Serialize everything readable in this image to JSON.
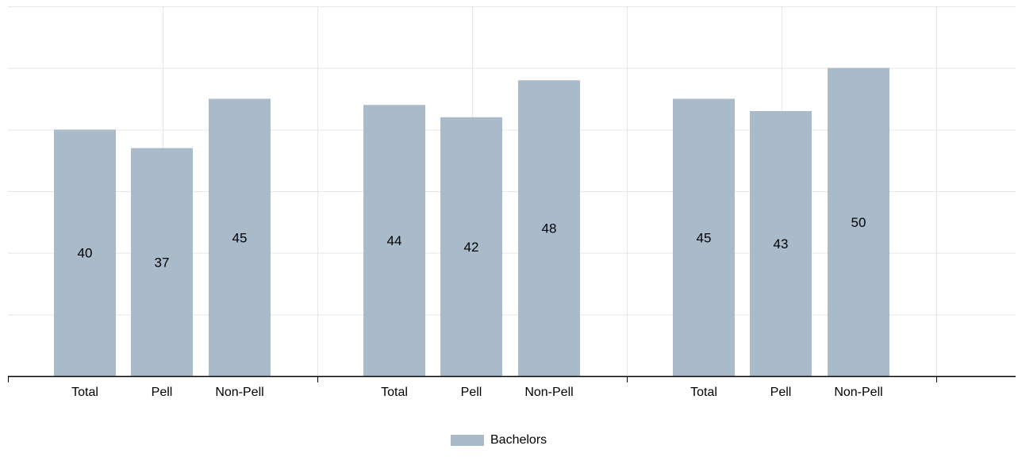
{
  "chart_data": {
    "type": "bar",
    "categories": [
      "Total",
      "Pell",
      "Non-Pell",
      "Total",
      "Pell",
      "Non-Pell",
      "Total",
      "Pell",
      "Non-Pell"
    ],
    "groups": [
      {
        "categories": [
          "Total",
          "Pell",
          "Non-Pell"
        ],
        "values": [
          40,
          37,
          45
        ]
      },
      {
        "categories": [
          "Total",
          "Pell",
          "Non-Pell"
        ],
        "values": [
          44,
          42,
          48
        ]
      },
      {
        "categories": [
          "Total",
          "Pell",
          "Non-Pell"
        ],
        "values": [
          45,
          43,
          50
        ]
      }
    ],
    "series": [
      {
        "name": "Bachelors",
        "values": [
          40,
          37,
          45,
          44,
          42,
          48,
          45,
          43,
          50
        ]
      }
    ],
    "ylim": [
      0,
      60
    ],
    "grid": true,
    "legend_position": "bottom-center",
    "colors": {
      "bar": "#a9bacb",
      "grid": "#e6e6e6",
      "axis": "#000000"
    }
  }
}
